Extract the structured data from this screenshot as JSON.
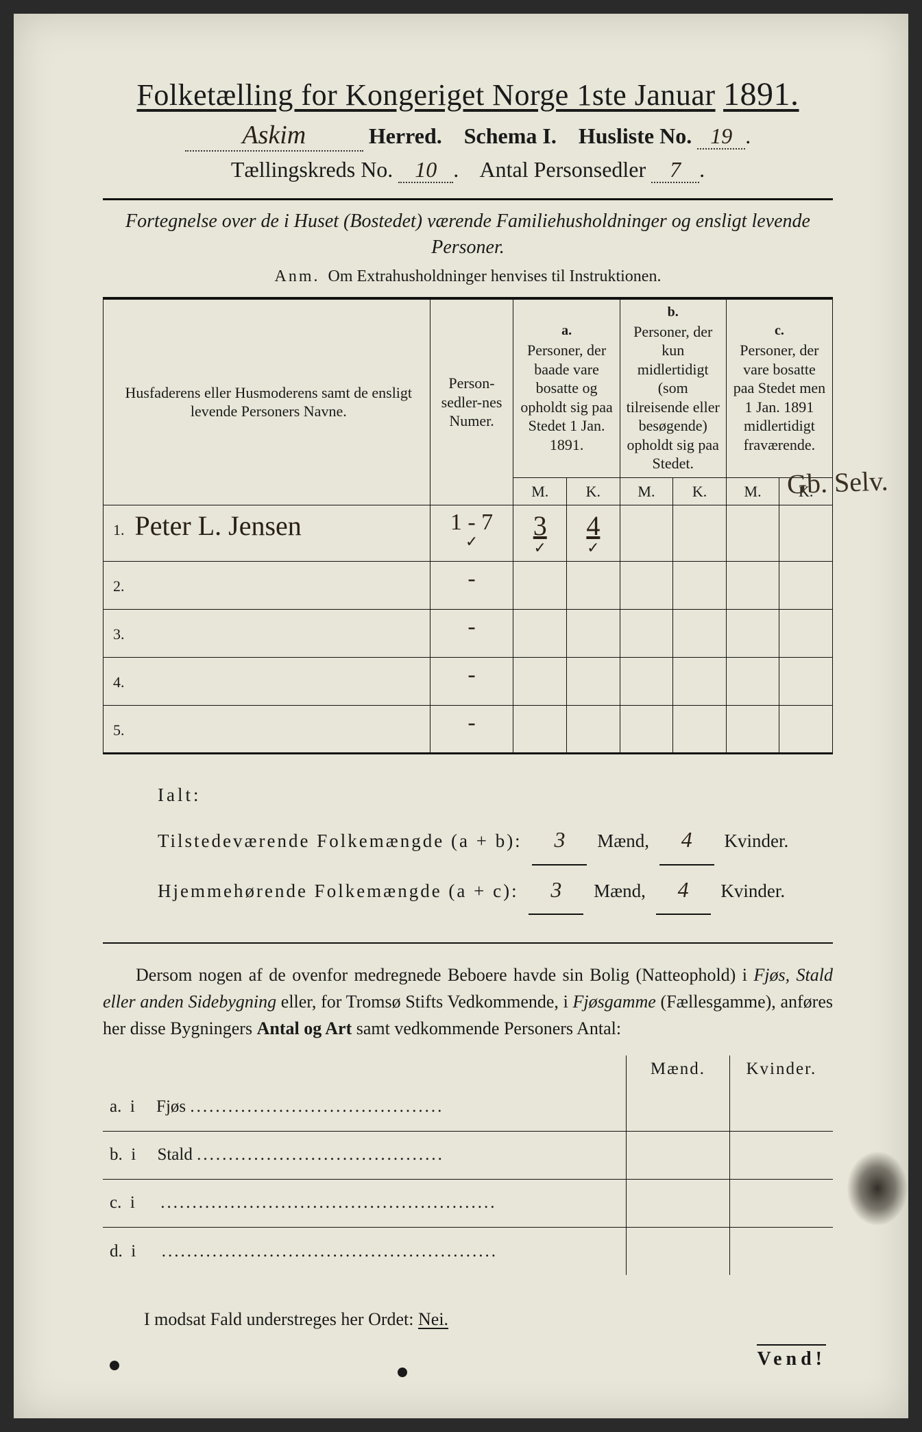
{
  "header": {
    "title_pre": "Folketælling for Kongeriget Norge 1ste Januar",
    "year": "1891.",
    "herred_value": "Askim",
    "herred_label": "Herred.",
    "schema_label": "Schema I.",
    "husliste_label": "Husliste No.",
    "husliste_value": "19",
    "kreds_label": "Tællingskreds No.",
    "kreds_value": "10",
    "personsedler_label": "Antal Personsedler",
    "personsedler_value": "7"
  },
  "subtitle": "Fortegnelse over de i Huset (Bostedet) værende Familiehusholdninger og ensligt levende Personer.",
  "anm_label": "Anm.",
  "anm_text": "Om Extrahusholdninger henvises til Instruktionen.",
  "table": {
    "col_name": "Husfaderens eller Husmoderens samt de ensligt levende Personers Navne.",
    "col_num": "Person-sedler-nes Numer.",
    "col_a_letter": "a.",
    "col_a": "Personer, der baade vare bosatte og opholdt sig paa Stedet 1 Jan. 1891.",
    "col_b_letter": "b.",
    "col_b": "Personer, der kun midlertidigt (som tilreisende eller besøgende) opholdt sig paa Stedet.",
    "col_c_letter": "c.",
    "col_c": "Personer, der vare bosatte paa Stedet men 1 Jan. 1891 midlertidigt fraværende.",
    "M": "M.",
    "K": "K.",
    "rows": [
      {
        "n": "1.",
        "name": "Peter L. Jensen",
        "num": "1 - 7",
        "aM": "3",
        "aK": "4",
        "bM": "",
        "bK": "",
        "cM": "",
        "cK": ""
      },
      {
        "n": "2.",
        "name": "",
        "num": "-",
        "aM": "",
        "aK": "",
        "bM": "",
        "bK": "",
        "cM": "",
        "cK": ""
      },
      {
        "n": "3.",
        "name": "",
        "num": "-",
        "aM": "",
        "aK": "",
        "bM": "",
        "bK": "",
        "cM": "",
        "cK": ""
      },
      {
        "n": "4.",
        "name": "",
        "num": "-",
        "aM": "",
        "aK": "",
        "bM": "",
        "bK": "",
        "cM": "",
        "cK": ""
      },
      {
        "n": "5.",
        "name": "",
        "num": "-",
        "aM": "",
        "aK": "",
        "bM": "",
        "bK": "",
        "cM": "",
        "cK": ""
      }
    ],
    "checkmarks_row1": {
      "num": "✓",
      "aM": "✓",
      "aK": "✓"
    }
  },
  "margin_note": "Gb. Selv.",
  "totals": {
    "ialt": "Ialt:",
    "line1_label": "Tilstedeværende Folkemængde (a + b):",
    "line2_label": "Hjemmehørende Folkemængde (a + c):",
    "maend": "Mænd,",
    "kvinder": "Kvinder.",
    "l1_m": "3",
    "l1_k": "4",
    "l2_m": "3",
    "l2_k": "4"
  },
  "paragraph": {
    "p1": "Dersom nogen af de ovenfor medregnede Beboere havde sin Bolig (Natteophold) i ",
    "i1": "Fjøs, Stald eller anden Sidebygning",
    "p2": " eller, for Tromsø Stifts Vedkommende, i ",
    "i2": "Fjøsgamme",
    "p3": " (Fællesgamme), anføres her disse Bygningers ",
    "b1": "Antal og Art",
    "p4": " samt vedkommende Personers Antal:"
  },
  "lower": {
    "maend": "Mænd.",
    "kvinder": "Kvinder.",
    "rows": [
      {
        "letter": "a.",
        "i": "i",
        "label": "Fjøs",
        "dots": "........................................"
      },
      {
        "letter": "b.",
        "i": "i",
        "label": "Stald",
        "dots": "......................................."
      },
      {
        "letter": "c.",
        "i": "i",
        "label": "",
        "dots": "....................................................."
      },
      {
        "letter": "d.",
        "i": "i",
        "label": "",
        "dots": "....................................................."
      }
    ]
  },
  "footer": {
    "text_pre": "I modsat Fald understreges her Ordet: ",
    "nei": "Nei.",
    "vend": "Vend!"
  },
  "style": {
    "page_bg": "#e8e6d8",
    "ink": "#1a1a1a",
    "hand_ink": "#2a2018"
  }
}
